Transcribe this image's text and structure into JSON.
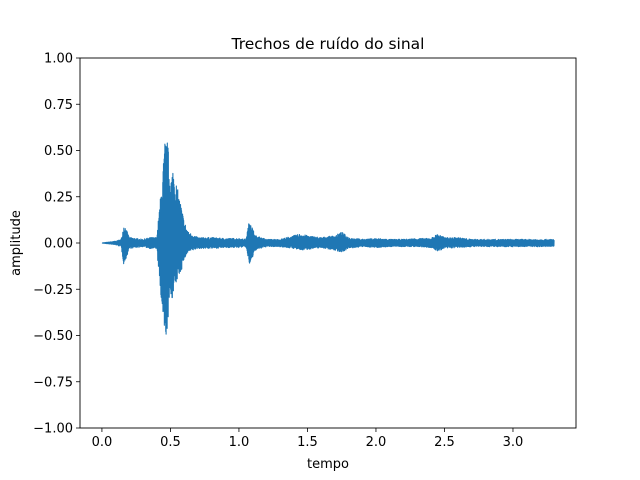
{
  "chart_data": {
    "type": "line",
    "title": "Trechos de ruído do sinal",
    "xlabel": "tempo",
    "ylabel": "amplitude",
    "xlim": [
      -0.16,
      3.46
    ],
    "ylim": [
      -1.0,
      1.0
    ],
    "grid": false,
    "legend": "none",
    "series_color": "#1f77b4",
    "xticks": [
      {
        "value": 0.0,
        "label": "0.0"
      },
      {
        "value": 0.5,
        "label": "0.5"
      },
      {
        "value": 1.0,
        "label": "1.0"
      },
      {
        "value": 1.5,
        "label": "1.5"
      },
      {
        "value": 2.0,
        "label": "2.0"
      },
      {
        "value": 2.5,
        "label": "2.5"
      },
      {
        "value": 3.0,
        "label": "3.0"
      }
    ],
    "yticks": [
      {
        "value": 1.0,
        "label": "1.00"
      },
      {
        "value": 0.75,
        "label": "0.75"
      },
      {
        "value": 0.5,
        "label": "0.50"
      },
      {
        "value": 0.25,
        "label": "0.25"
      },
      {
        "value": 0.0,
        "label": "0.00"
      },
      {
        "value": -0.25,
        "label": "−0.25"
      },
      {
        "value": -0.5,
        "label": "−0.50"
      },
      {
        "value": -0.75,
        "label": "−0.75"
      },
      {
        "value": -1.0,
        "label": "−1.00"
      }
    ],
    "series": [
      {
        "x": [
          0.0,
          0.05,
          0.1,
          0.14,
          0.16,
          0.17,
          0.2,
          0.25,
          0.3,
          0.35,
          0.4,
          0.44,
          0.46,
          0.48,
          0.5,
          0.52,
          0.55,
          0.58,
          0.6,
          0.63,
          0.7,
          0.8,
          0.9,
          1.0,
          1.05,
          1.08,
          1.1,
          1.12,
          1.2,
          1.3,
          1.4,
          1.45,
          1.5,
          1.6,
          1.7,
          1.75,
          1.8,
          1.9,
          2.0,
          2.1,
          2.2,
          2.3,
          2.4,
          2.45,
          2.5,
          2.6,
          2.7,
          2.8,
          2.9,
          3.0,
          3.1,
          3.2,
          3.3
        ],
        "ymax": [
          0.0,
          0.005,
          0.01,
          0.02,
          0.1,
          0.09,
          0.03,
          0.025,
          0.02,
          0.03,
          0.03,
          0.35,
          0.56,
          0.55,
          0.35,
          0.42,
          0.3,
          0.2,
          0.12,
          0.06,
          0.03,
          0.03,
          0.025,
          0.025,
          0.02,
          0.14,
          0.08,
          0.04,
          0.02,
          0.02,
          0.04,
          0.05,
          0.04,
          0.03,
          0.04,
          0.06,
          0.03,
          0.02,
          0.025,
          0.02,
          0.02,
          0.025,
          0.025,
          0.05,
          0.03,
          0.03,
          0.02,
          0.02,
          0.02,
          0.02,
          0.02,
          0.02,
          0.02
        ],
        "ymin": [
          0.0,
          -0.005,
          -0.01,
          -0.02,
          -0.12,
          -0.1,
          -0.03,
          -0.025,
          -0.02,
          -0.03,
          -0.03,
          -0.4,
          -0.56,
          -0.45,
          -0.3,
          -0.3,
          -0.2,
          -0.15,
          -0.09,
          -0.05,
          -0.03,
          -0.03,
          -0.025,
          -0.025,
          -0.02,
          -0.13,
          -0.08,
          -0.04,
          -0.02,
          -0.02,
          -0.03,
          -0.04,
          -0.035,
          -0.025,
          -0.04,
          -0.05,
          -0.03,
          -0.02,
          -0.025,
          -0.02,
          -0.02,
          -0.02,
          -0.025,
          -0.045,
          -0.03,
          -0.025,
          -0.02,
          -0.02,
          -0.02,
          -0.02,
          -0.02,
          -0.02,
          -0.02
        ]
      }
    ]
  }
}
